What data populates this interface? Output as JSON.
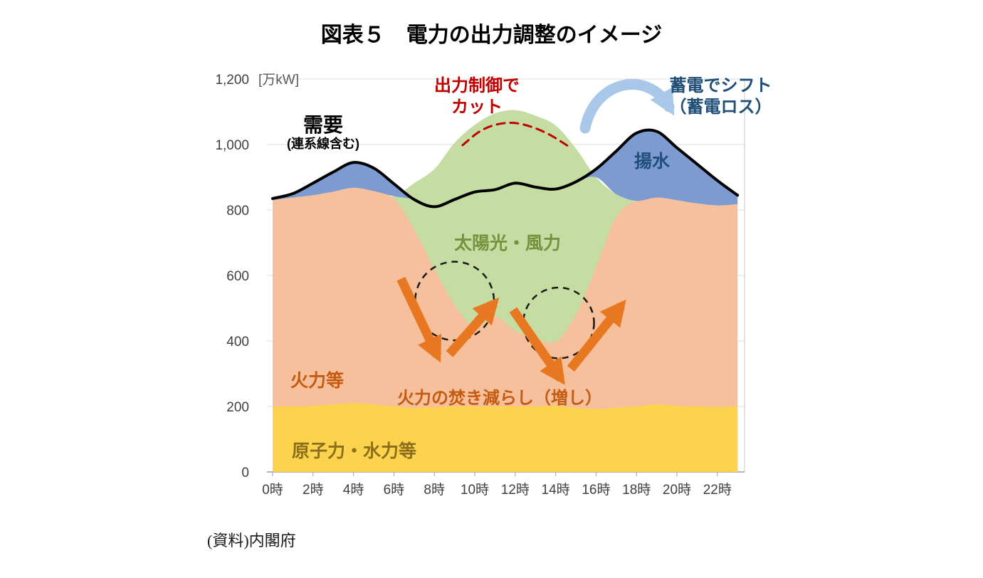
{
  "page": {
    "title": "図表５　電力の出力調整のイメージ",
    "source": "(資料)内閣府"
  },
  "chart_data": {
    "type": "area",
    "title": "図表５　電力の出力調整のイメージ",
    "unit_label": "[万kW]",
    "x_hours": [
      0,
      1,
      2,
      3,
      4,
      5,
      6,
      7,
      8,
      9,
      10,
      11,
      12,
      13,
      14,
      15,
      16,
      17,
      18,
      19,
      20,
      21,
      22,
      23
    ],
    "x_tick_hours": [
      0,
      2,
      4,
      6,
      8,
      10,
      12,
      14,
      16,
      18,
      20,
      22
    ],
    "x_tick_labels": [
      "0時",
      "2時",
      "4時",
      "6時",
      "8時",
      "10時",
      "12時",
      "14時",
      "16時",
      "18時",
      "20時",
      "22時"
    ],
    "ylim": [
      0,
      1200
    ],
    "yticks": [
      0,
      200,
      400,
      600,
      800,
      1000,
      1200
    ],
    "ytick_labels": [
      "0",
      "200",
      "400",
      "600",
      "800",
      "1,000",
      "1,200"
    ],
    "note": "area series store cumulative stack-top values in 万kW, estimated from the figure",
    "series": [
      {
        "id": "nuclear_hydro",
        "name": "原子力・水力等",
        "type": "area",
        "color": "#FBD34D",
        "stack_top": [
          200,
          200,
          202,
          206,
          210,
          206,
          200,
          196,
          198,
          200,
          200,
          200,
          200,
          200,
          202,
          196,
          192,
          196,
          200,
          206,
          202,
          200,
          198,
          200
        ]
      },
      {
        "id": "thermal",
        "name": "火力等",
        "type": "area",
        "color": "#F5C09B",
        "stack_top": [
          830,
          838,
          845,
          856,
          868,
          858,
          835,
          740,
          620,
          510,
          440,
          475,
          430,
          408,
          398,
          480,
          625,
          780,
          828,
          838,
          830,
          820,
          814,
          818
        ]
      },
      {
        "id": "solar_wind",
        "name": "太陽光・風力",
        "type": "area",
        "color": "#C5DCA3",
        "stack_top": [
          830,
          838,
          845,
          856,
          868,
          858,
          842,
          882,
          925,
          1005,
          1060,
          1095,
          1105,
          1088,
          1058,
          988,
          900,
          848,
          828,
          838,
          830,
          820,
          814,
          818
        ]
      },
      {
        "id": "pumped",
        "name": "揚水",
        "type": "area",
        "color": "#7D9BD1",
        "derivation": "demand minus generation stack where positive"
      },
      {
        "id": "demand",
        "name": "需要(連系線含む)",
        "type": "line",
        "color": "#000000",
        "values": [
          835,
          850,
          882,
          916,
          945,
          928,
          880,
          832,
          810,
          832,
          855,
          862,
          882,
          870,
          864,
          886,
          925,
          980,
          1035,
          1040,
          990,
          940,
          890,
          845
        ]
      },
      {
        "id": "curtail",
        "name": "出力制御でカット",
        "type": "dashed-line",
        "color": "#C00000",
        "x_hours": [
          9.4,
          10.2,
          11.0,
          11.9,
          12.8,
          13.7,
          14.6
        ],
        "values": [
          998,
          1038,
          1060,
          1066,
          1054,
          1030,
          996
        ]
      }
    ],
    "annotations": {
      "demand": {
        "line1": "需要",
        "line2": "(連系線含む)",
        "color": "#000000"
      },
      "curtail": {
        "line1": "出力制御で",
        "line2": "カット",
        "color": "#C00000"
      },
      "battery": {
        "line1": "蓄電でシフト",
        "line2": "（蓄電ロス）",
        "color": "#1F4E79"
      },
      "pumped": {
        "text": "揚水",
        "color": "#1F4E79"
      },
      "solar": {
        "text": "太陽光・風力",
        "color": "#76923C"
      },
      "thermal": {
        "text": "火力等",
        "color": "#C55A11"
      },
      "thermal_adjust": {
        "text": "火力の焚き減らし（増し）",
        "color": "#C55A11"
      },
      "nuclear": {
        "text": "原子力・水力等",
        "color": "#8C6E1C"
      },
      "arrow_color": "#E87722",
      "battery_arrow_color": "#A9C7E9",
      "circle_color": "#1a1a1a",
      "arrows": [
        {
          "from": [
            6.35,
            590
          ],
          "to": [
            8.15,
            355
          ]
        },
        {
          "from": [
            8.75,
            360
          ],
          "to": [
            10.95,
            515
          ]
        },
        {
          "from": [
            11.9,
            495
          ],
          "to": [
            14.25,
            285
          ]
        },
        {
          "from": [
            14.75,
            315
          ],
          "to": [
            17.25,
            508
          ]
        }
      ],
      "circles": [
        {
          "cx_h": 9.0,
          "cy_v": 522,
          "rx_h": 1.95,
          "ry_v": 120
        },
        {
          "cx_h": 14.15,
          "cy_v": 455,
          "rx_h": 1.75,
          "ry_v": 108
        }
      ]
    }
  }
}
